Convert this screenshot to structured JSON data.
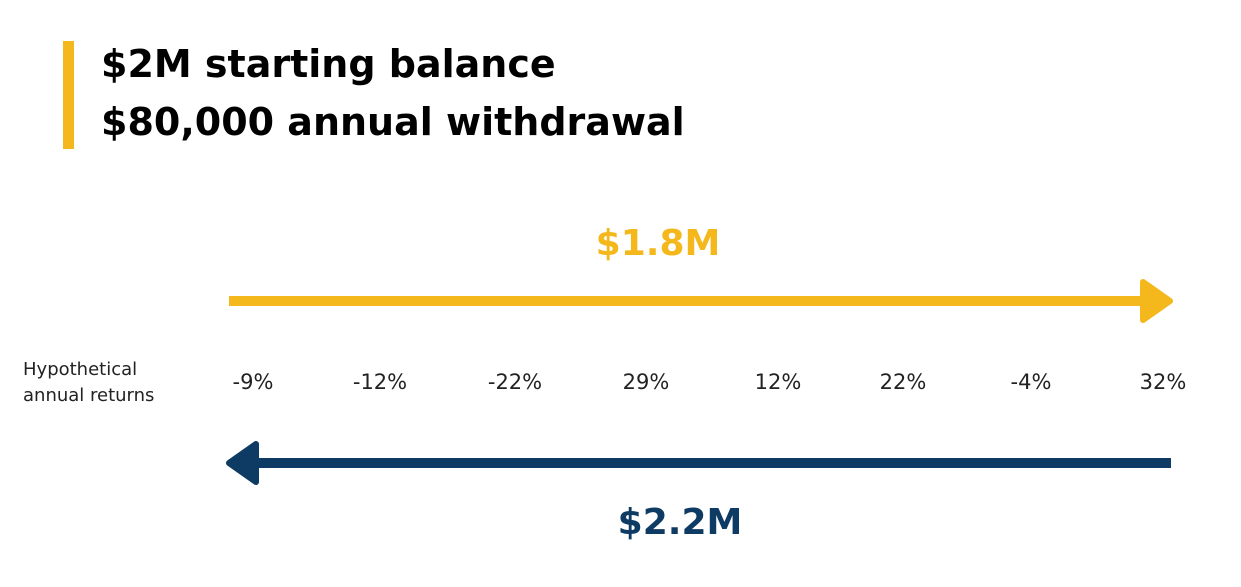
{
  "header": {
    "line1": "$2M starting balance",
    "line2": "$80,000 annual withdrawal"
  },
  "forward": {
    "amount": "$1.8M",
    "direction": "left-to-right"
  },
  "reverse": {
    "amount": "$2.2M",
    "direction": "right-to-left"
  },
  "returns_label": {
    "line1": "Hypothetical",
    "line2": "annual returns"
  },
  "returns": [
    "-9%",
    "-12%",
    "-22%",
    "29%",
    "12%",
    "22%",
    "-4%",
    "32%"
  ],
  "colors": {
    "accent": "#F4B81C",
    "navy": "#0E3B63",
    "text": "#222222"
  }
}
